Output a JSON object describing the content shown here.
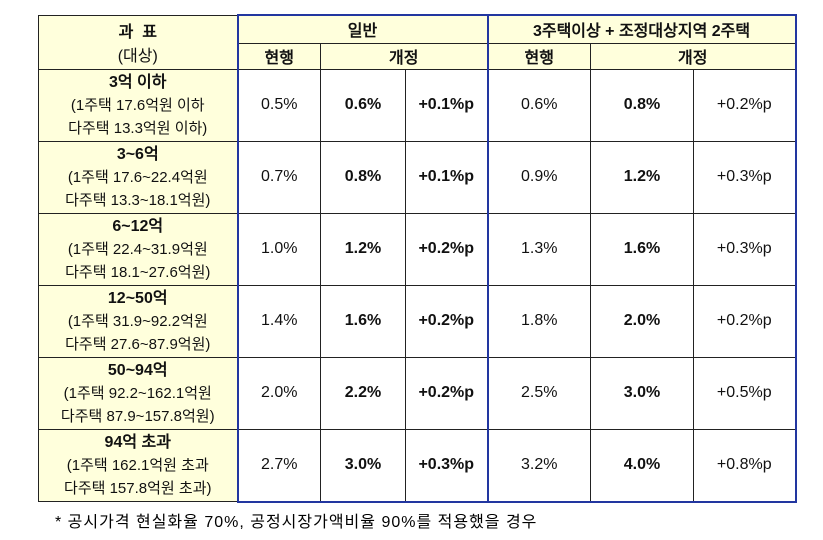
{
  "header": {
    "col0": [
      "과  표",
      "(대상)"
    ],
    "group1": "일반",
    "group2": "3주택이상 + 조정대상지역 2주택",
    "sub": [
      "현행",
      "개정",
      "현행",
      "개정"
    ]
  },
  "rows": [
    {
      "label": "3억 이하",
      "detail": [
        "(1주택 17.6억원 이하",
        "다주택 13.3억원 이하)"
      ],
      "values": [
        "0.5%",
        "0.6%",
        "+0.1%p",
        "0.6%",
        "0.8%",
        "+0.2%p"
      ]
    },
    {
      "label": "3~6억",
      "detail": [
        "(1주택 17.6~22.4억원",
        "다주택 13.3~18.1억원)"
      ],
      "values": [
        "0.7%",
        "0.8%",
        "+0.1%p",
        "0.9%",
        "1.2%",
        "+0.3%p"
      ]
    },
    {
      "label": "6~12억",
      "detail": [
        "(1주택 22.4~31.9억원",
        "다주택 18.1~27.6억원)"
      ],
      "values": [
        "1.0%",
        "1.2%",
        "+0.2%p",
        "1.3%",
        "1.6%",
        "+0.3%p"
      ]
    },
    {
      "label": "12~50억",
      "detail": [
        "(1주택 31.9~92.2억원",
        "다주택 27.6~87.9억원)"
      ],
      "values": [
        "1.4%",
        "1.6%",
        "+0.2%p",
        "1.8%",
        "2.0%",
        "+0.2%p"
      ]
    },
    {
      "label": "50~94억",
      "detail": [
        "(1주택 92.2~162.1억원",
        "다주택 87.9~157.8억원)"
      ],
      "values": [
        "2.0%",
        "2.2%",
        "+0.2%p",
        "2.5%",
        "3.0%",
        "+0.5%p"
      ]
    },
    {
      "label": "94억 초과",
      "detail": [
        "(1주택 162.1억원 초과",
        "다주택 157.8억원 초과)"
      ],
      "values": [
        "2.7%",
        "3.0%",
        "+0.3%p",
        "3.2%",
        "4.0%",
        "+0.8%p"
      ]
    }
  ],
  "footnote": "* 공시가격 현실화율 70%, 공정시장가액비율 90%를 적용했을 경우"
}
